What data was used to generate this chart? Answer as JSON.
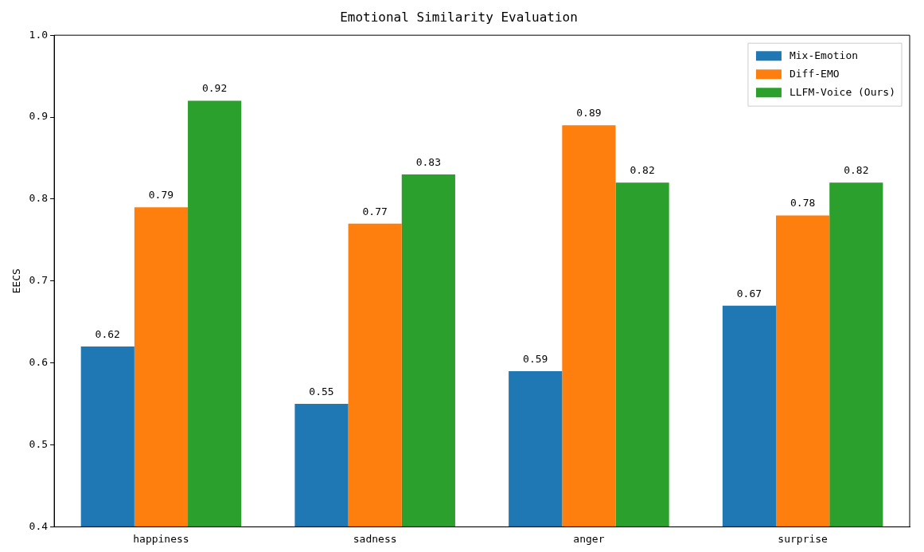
{
  "chart_data": {
    "type": "bar",
    "title": "Emotional Similarity Evaluation",
    "ylabel": "EECS",
    "categories": [
      "happiness",
      "sadness",
      "anger",
      "surprise"
    ],
    "series": [
      {
        "name": "Mix-Emotion",
        "color": "#1f77b4",
        "values": [
          0.62,
          0.55,
          0.59,
          0.67
        ]
      },
      {
        "name": "Diff-EMO",
        "color": "#ff7f0e",
        "values": [
          0.79,
          0.77,
          0.89,
          0.78
        ]
      },
      {
        "name": "LLFM-Voice (Ours)",
        "color": "#2ca02c",
        "values": [
          0.92,
          0.83,
          0.82,
          0.82
        ]
      }
    ],
    "ylim": [
      0.4,
      1.0
    ],
    "yticks": [
      0.4,
      0.5,
      0.6,
      0.7,
      0.8,
      0.9,
      {
        "value": 1.0,
        "label": "1.0"
      }
    ],
    "data_labels": true,
    "legend": "top right",
    "grid": false
  }
}
